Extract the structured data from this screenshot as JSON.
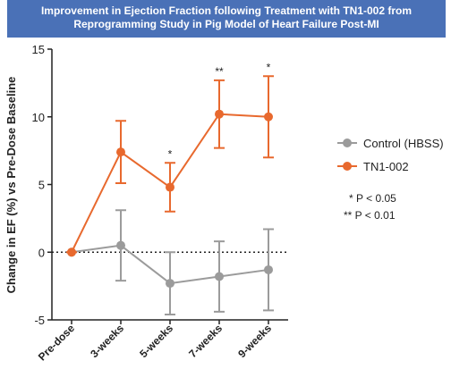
{
  "chart_data": {
    "type": "line",
    "title": "Improvement in Ejection Fraction following Treatment with TN1-002 from Reprogramming Study in Pig Model of Heart Failure Post-MI",
    "y_label": "Change in EF (%) vs  Pre-Dose Baseline",
    "categories": [
      "Pre-dose",
      "3-weeks",
      "5-weeks",
      "7-weeks",
      "9-weeks"
    ],
    "series": [
      {
        "name": "Control (HBSS)",
        "color": "#9b9b9b",
        "values": [
          0,
          0.5,
          -2.3,
          -1.8,
          -1.3
        ],
        "errors": [
          0,
          2.6,
          2.3,
          2.6,
          3.0
        ]
      },
      {
        "name": "TN1-002",
        "color": "#e8692e",
        "values": [
          0,
          7.4,
          4.8,
          10.2,
          10.0
        ],
        "errors": [
          0,
          2.3,
          1.8,
          2.5,
          3.0
        ]
      }
    ],
    "significance_labels": [
      null,
      null,
      "*",
      "**",
      "*"
    ],
    "notes": [
      "* P < 0.05",
      "** P < 0.01"
    ],
    "ylim": [
      -5,
      15
    ],
    "yticks": [
      -5,
      0,
      5,
      10,
      15
    ],
    "reference_line": 0
  }
}
